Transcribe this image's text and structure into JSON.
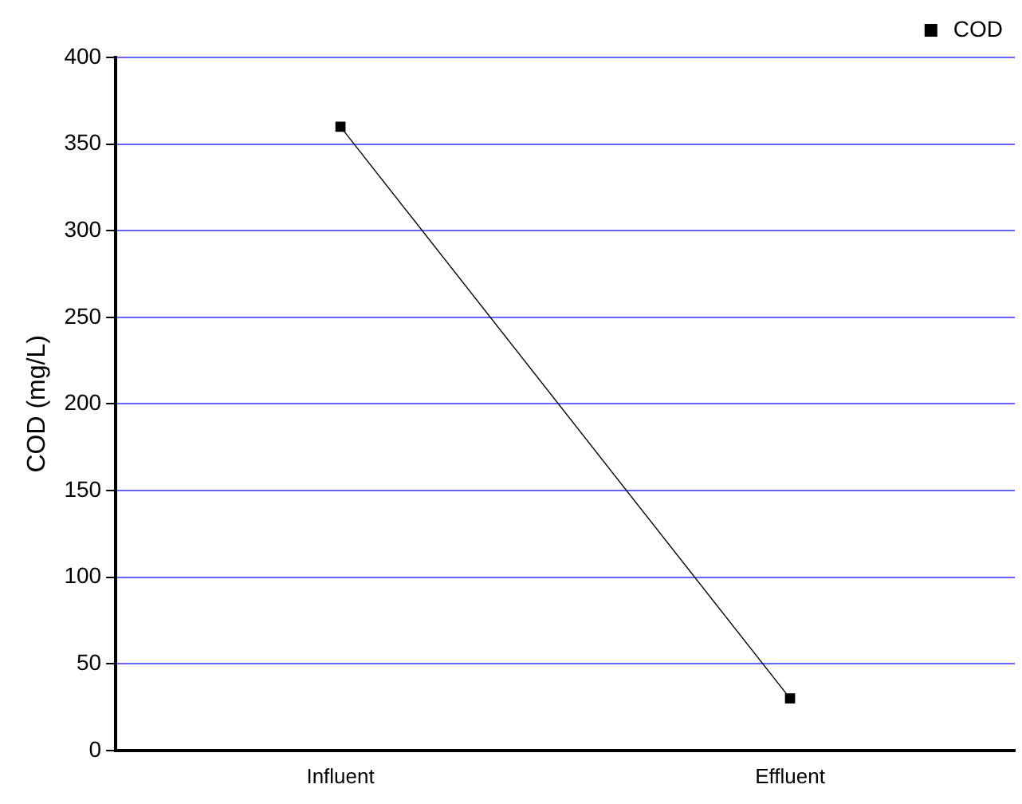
{
  "chart_data": {
    "type": "line",
    "ylabel": "COD (mg/L)",
    "categories": [
      "Influent",
      "Effluent"
    ],
    "series": [
      {
        "name": "COD",
        "color": "#000000",
        "values": [
          360,
          30
        ]
      }
    ],
    "ylim": [
      0,
      400
    ],
    "yticks": [
      0,
      50,
      100,
      150,
      200,
      250,
      300,
      350,
      400
    ],
    "grid": "y",
    "legend": "top right",
    "marker": "square",
    "line_style": "solid"
  }
}
